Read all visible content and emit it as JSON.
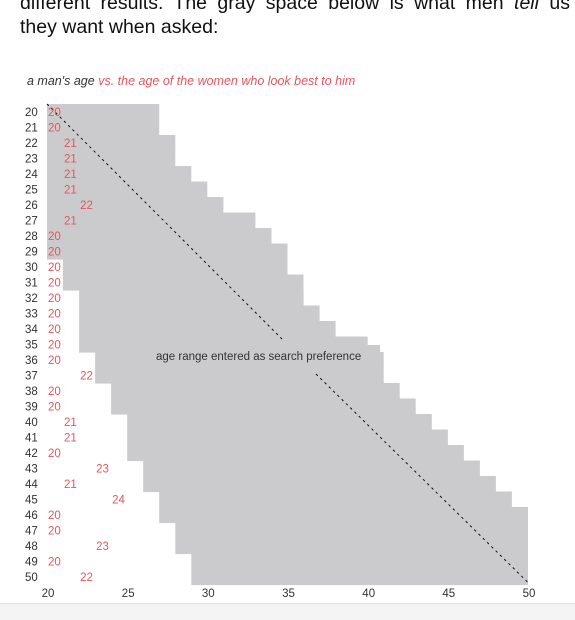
{
  "intro": {
    "line1": "different results. The gray space below is what men",
    "line2_start": "they want when asked:",
    "emphasis": "tell",
    "line1_end": "us"
  },
  "chart_data": {
    "type": "range",
    "title_part1": "a man's age",
    "title_part2": "vs. the age of the women who look best to him",
    "annotation": "age range entered as search preference",
    "colors": {
      "range_fill": "#cbcbcd",
      "label_red": "#e0585f",
      "text": "#333333",
      "diagonal": "#111111"
    },
    "x_ticks": [
      20,
      25,
      30,
      35,
      40,
      45,
      50
    ],
    "xlim": [
      20,
      50
    ],
    "ylim": [
      20,
      50
    ],
    "men_ages": [
      20,
      21,
      22,
      23,
      24,
      25,
      26,
      27,
      28,
      29,
      30,
      31,
      32,
      33,
      34,
      35,
      36,
      37,
      38,
      39,
      40,
      41,
      42,
      43,
      44,
      45,
      46,
      47,
      48,
      49,
      50
    ],
    "most_attractive_age": [
      20,
      20,
      21,
      21,
      21,
      21,
      22,
      21,
      20,
      20,
      20,
      20,
      20,
      20,
      20,
      20,
      20,
      22,
      20,
      20,
      21,
      21,
      20,
      23,
      21,
      24,
      20,
      20,
      23,
      20,
      22
    ],
    "search_min": [
      20,
      20,
      20,
      20,
      20,
      20,
      20,
      20,
      20,
      20,
      21,
      21,
      22,
      22,
      22,
      22,
      23,
      23,
      24,
      24,
      25,
      25,
      25,
      26,
      26,
      27,
      27,
      28,
      28,
      29,
      29
    ],
    "search_max": [
      27,
      27,
      28,
      28,
      29,
      30,
      31,
      33,
      34,
      35,
      35,
      36,
      36,
      37,
      38,
      40,
      41,
      41,
      42,
      43,
      44,
      45,
      46,
      47,
      48,
      49,
      50,
      50,
      50,
      50,
      50
    ]
  }
}
